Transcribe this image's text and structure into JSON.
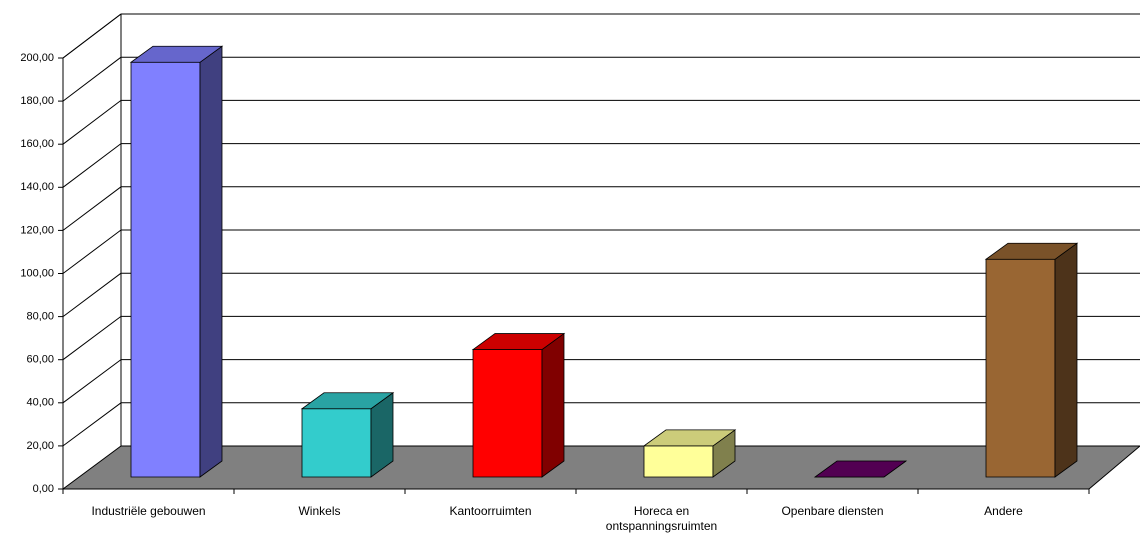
{
  "chart_data": {
    "type": "bar3d",
    "categories": [
      "Industriële gebouwen",
      "Winkels",
      "Kantoorruimten",
      "Horeca en ontspanningsruimten",
      "Openbare diensten",
      "Andere"
    ],
    "values": [
      192,
      31.6,
      59,
      14.4,
      0,
      100.8
    ],
    "colors": [
      "#8080ff",
      "#33cccc",
      "#ff0000",
      "#ffff99",
      "#660066",
      "#996633"
    ],
    "ylim": [
      0,
      200
    ],
    "yticks": [
      {
        "value": 0,
        "label": "0,00"
      },
      {
        "value": 20,
        "label": "20,00"
      },
      {
        "value": 40,
        "label": "40,00"
      },
      {
        "value": 60,
        "label": "60,00"
      },
      {
        "value": 80,
        "label": "80,00"
      },
      {
        "value": 100,
        "label": "100,00"
      },
      {
        "value": 120,
        "label": "120,00"
      },
      {
        "value": 140,
        "label": "140,00"
      },
      {
        "value": 160,
        "label": "160,00"
      },
      {
        "value": 180,
        "label": "180,00"
      },
      {
        "value": 200,
        "label": "200,00"
      }
    ],
    "grid": true
  }
}
